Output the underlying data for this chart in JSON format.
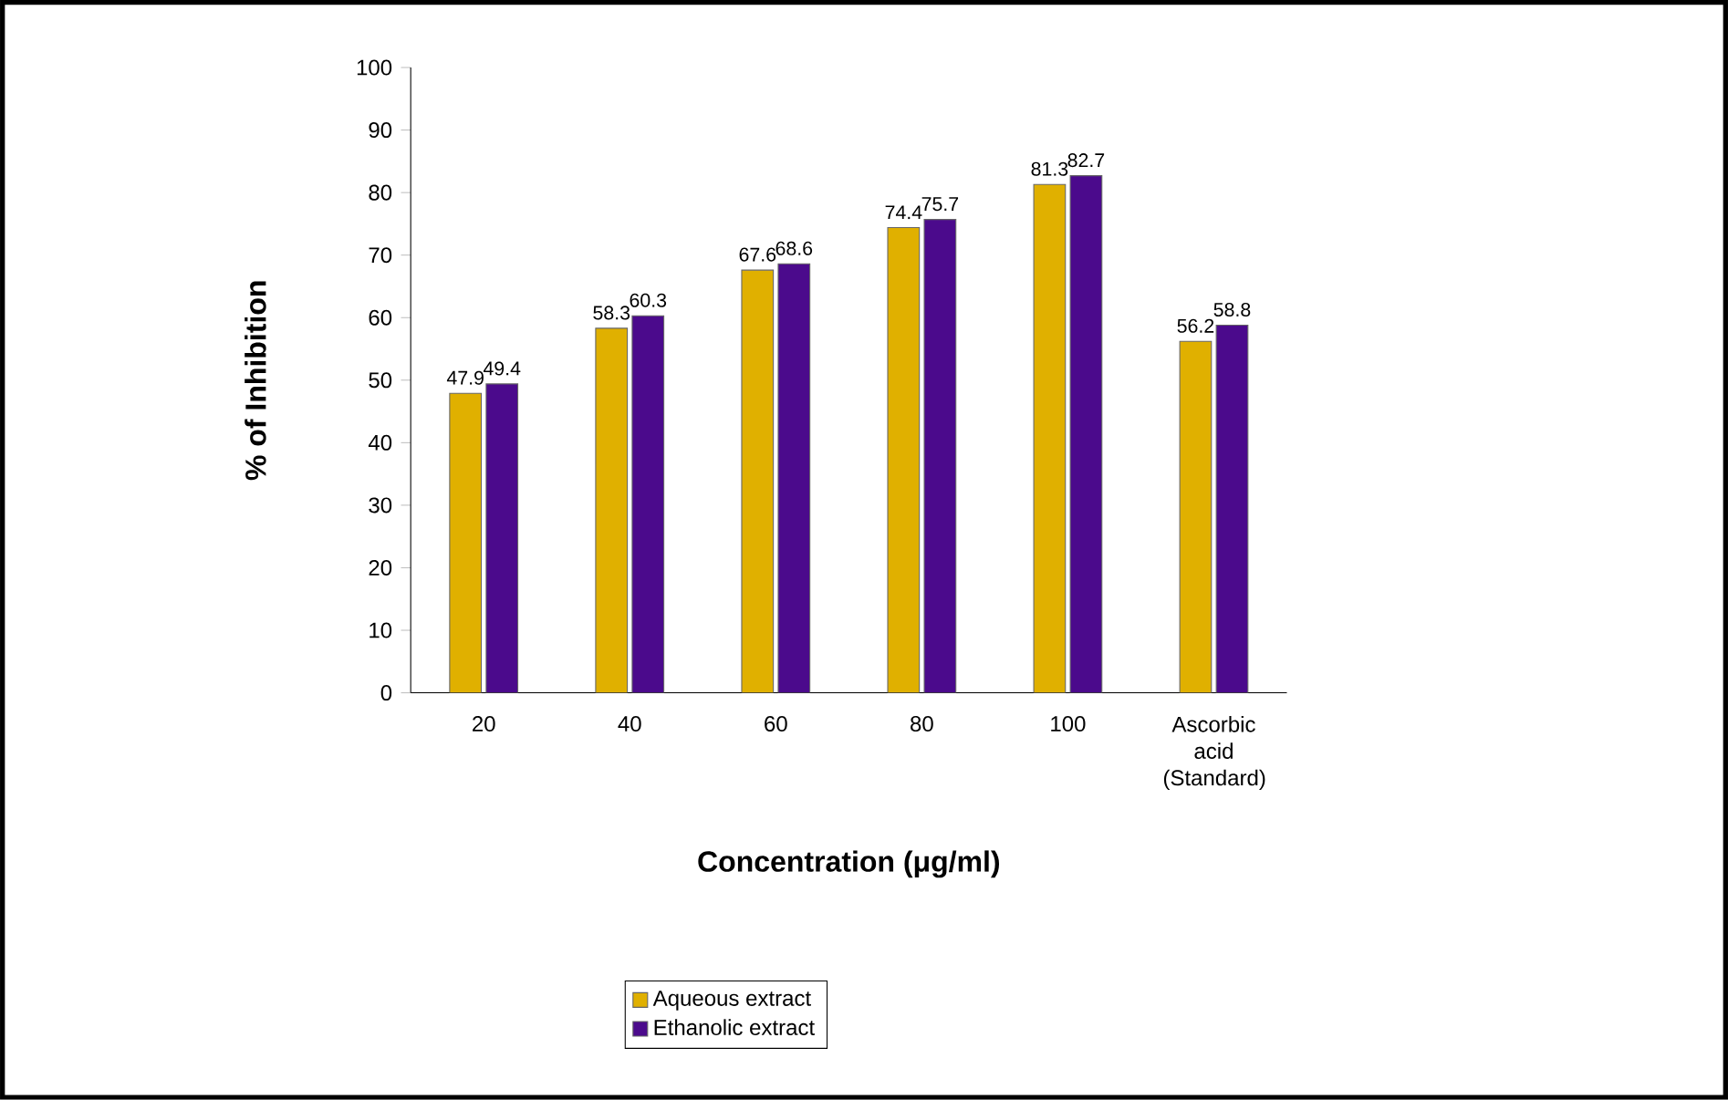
{
  "chart_data": {
    "type": "bar",
    "xlabel": "Concentration (μg/ml)",
    "ylabel": "% of Inhibition",
    "categories": [
      "20",
      "40",
      "60",
      "80",
      "100",
      "Ascorbic acid (Standard)"
    ],
    "series": [
      {
        "name": "Aqueous extract",
        "color": "#e0b000",
        "values": [
          47.9,
          58.3,
          67.6,
          74.4,
          81.3,
          56.2
        ]
      },
      {
        "name": "Ethanolic extract",
        "color": "#4b0a8c",
        "values": [
          49.4,
          60.3,
          68.6,
          75.7,
          82.7,
          58.8
        ]
      }
    ],
    "ylim": [
      0,
      100
    ],
    "yticks": [
      0,
      10,
      20,
      30,
      40,
      50,
      60,
      70,
      80,
      90,
      100
    ],
    "data_labels": true,
    "legend": "bottom",
    "grid": false
  }
}
